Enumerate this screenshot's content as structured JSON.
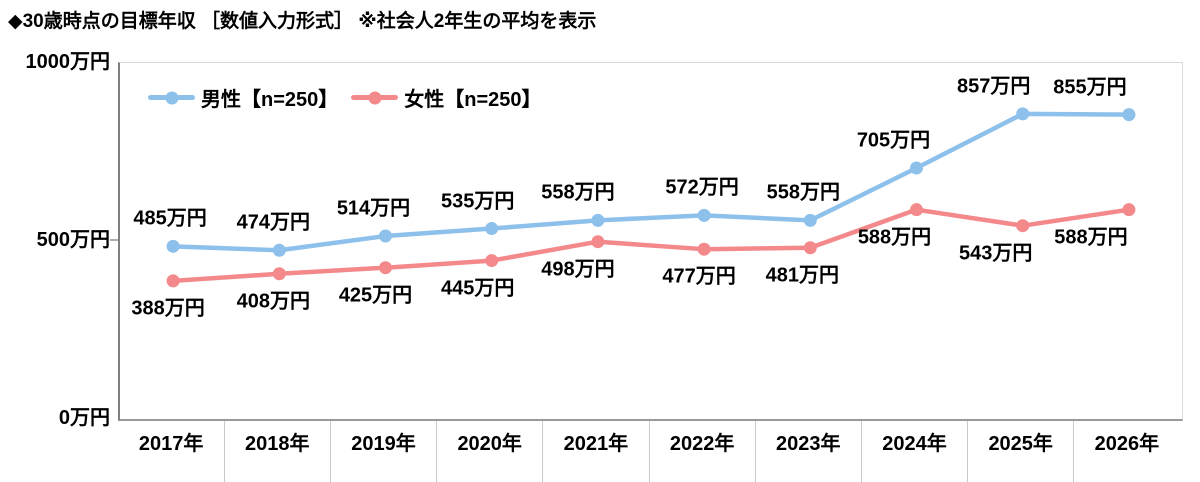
{
  "title": "◆30歳時点の目標年収 ［数値入力形式］ ※社会人2年生の平均を表示",
  "chart_data": {
    "type": "line",
    "title": "◆30歳時点の目標年収 ［数値入力形式］ ※社会人2年生の平均を表示",
    "categories": [
      "2017年",
      "2018年",
      "2019年",
      "2020年",
      "2021年",
      "2022年",
      "2023年",
      "2024年",
      "2025年",
      "2026年"
    ],
    "ylim": [
      0,
      1000
    ],
    "y_ticks": [
      {
        "value": 0,
        "label": "0万円"
      },
      {
        "value": 500,
        "label": "500万円"
      },
      {
        "value": 1000,
        "label": "1000万円"
      }
    ],
    "grid": false,
    "legend_position": "top-left-inside",
    "series": [
      {
        "name": "男性【n=250】",
        "color": "#8DC0EB",
        "values": [
          485,
          474,
          514,
          535,
          558,
          572,
          558,
          705,
          857,
          855
        ],
        "labels": [
          "485万円",
          "474万円",
          "514万円",
          "535万円",
          "558万円",
          "572万円",
          "558万円",
          "705万円",
          "857万円",
          "855万円"
        ],
        "label_position": "above",
        "label_dx": [
          -3,
          -6,
          -12,
          -14,
          -20,
          -2,
          -7,
          -23,
          -29,
          -39
        ]
      },
      {
        "name": "女性【n=250】",
        "color": "#F4898C",
        "values": [
          388,
          408,
          425,
          445,
          498,
          477,
          481,
          588,
          543,
          588
        ],
        "labels": [
          "388万円",
          "408万円",
          "425万円",
          "445万円",
          "498万円",
          "477万円",
          "481万円",
          "588万円",
          "543万円",
          "588万円"
        ],
        "label_position": "below",
        "label_dx": [
          -5,
          -6,
          -10,
          -14,
          -20,
          -5,
          -8,
          -22,
          -27,
          -38
        ]
      }
    ]
  },
  "colors": {
    "axis": "#808080",
    "plot_border": "#D9D9D9",
    "separator": "#C9C9C9",
    "text": "#000000",
    "background": "#FFFFFF"
  }
}
